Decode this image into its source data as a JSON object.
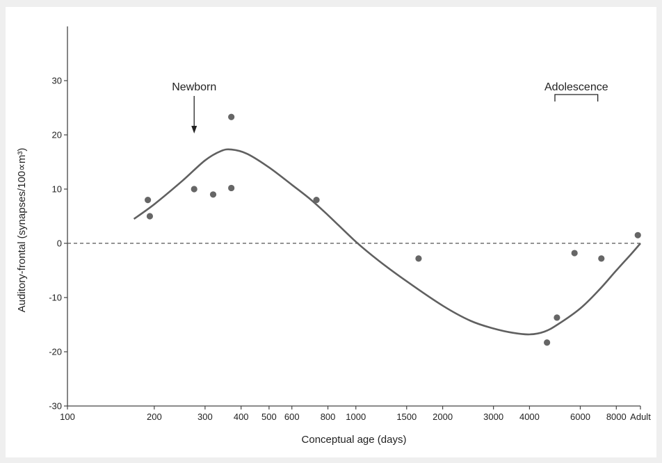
{
  "chart_data": {
    "type": "scatter",
    "title": "",
    "xlabel": "Conceptual age (days)",
    "ylabel": "Auditory-frontal (synapses/100∝m³)",
    "x_scale": "log",
    "xlim": [
      100,
      9700
    ],
    "ylim": [
      -30,
      40
    ],
    "x_ticks": [
      {
        "value": 100,
        "label": "100"
      },
      {
        "value": 200,
        "label": "200"
      },
      {
        "value": 300,
        "label": "300"
      },
      {
        "value": 400,
        "label": "400"
      },
      {
        "value": 500,
        "label": "500"
      },
      {
        "value": 600,
        "label": "600"
      },
      {
        "value": 800,
        "label": "800"
      },
      {
        "value": 1000,
        "label": "1000"
      },
      {
        "value": 1500,
        "label": "1500"
      },
      {
        "value": 2000,
        "label": "2000"
      },
      {
        "value": 3000,
        "label": "3000"
      },
      {
        "value": 4000,
        "label": "4000"
      },
      {
        "value": 6000,
        "label": "6000"
      },
      {
        "value": 8000,
        "label": "8000"
      },
      {
        "value": 9700,
        "label": "Adult"
      }
    ],
    "y_ticks": [
      {
        "value": -30,
        "label": "-30"
      },
      {
        "value": -20,
        "label": "-20"
      },
      {
        "value": -10,
        "label": "-10"
      },
      {
        "value": 0,
        "label": "0"
      },
      {
        "value": 10,
        "label": "10"
      },
      {
        "value": 20,
        "label": "20"
      },
      {
        "value": 30,
        "label": "30"
      }
    ],
    "grid": false,
    "reference_line": {
      "y": 0,
      "style": "dashed"
    },
    "points": [
      {
        "x": 190,
        "y": 8
      },
      {
        "x": 193,
        "y": 5
      },
      {
        "x": 275,
        "y": 10
      },
      {
        "x": 320,
        "y": 9
      },
      {
        "x": 370,
        "y": 23.3
      },
      {
        "x": 370,
        "y": 10.2
      },
      {
        "x": 730,
        "y": 8
      },
      {
        "x": 1650,
        "y": -2.8
      },
      {
        "x": 4600,
        "y": -18.3
      },
      {
        "x": 4980,
        "y": -13.7
      },
      {
        "x": 5730,
        "y": -1.8
      },
      {
        "x": 7100,
        "y": -2.8
      },
      {
        "x": 9500,
        "y": 1.5
      }
    ],
    "fit_curve": [
      {
        "x": 170,
        "y": 4.5
      },
      {
        "x": 200,
        "y": 7.2
      },
      {
        "x": 250,
        "y": 11.5
      },
      {
        "x": 300,
        "y": 15.3
      },
      {
        "x": 340,
        "y": 17
      },
      {
        "x": 370,
        "y": 17.3
      },
      {
        "x": 420,
        "y": 16.5
      },
      {
        "x": 500,
        "y": 14
      },
      {
        "x": 600,
        "y": 10.8
      },
      {
        "x": 700,
        "y": 8
      },
      {
        "x": 800,
        "y": 5.2
      },
      {
        "x": 1000,
        "y": 0.3
      },
      {
        "x": 1200,
        "y": -3.2
      },
      {
        "x": 1500,
        "y": -7
      },
      {
        "x": 2000,
        "y": -11.5
      },
      {
        "x": 2500,
        "y": -14.3
      },
      {
        "x": 3000,
        "y": -15.7
      },
      {
        "x": 3500,
        "y": -16.5
      },
      {
        "x": 4000,
        "y": -16.8
      },
      {
        "x": 4500,
        "y": -16.3
      },
      {
        "x": 5000,
        "y": -15
      },
      {
        "x": 6000,
        "y": -12
      },
      {
        "x": 7000,
        "y": -8.5
      },
      {
        "x": 8000,
        "y": -5
      },
      {
        "x": 9000,
        "y": -2
      },
      {
        "x": 9700,
        "y": 0
      }
    ],
    "annotations": [
      {
        "label": "Newborn",
        "type": "arrow",
        "x": 275
      },
      {
        "label": "Adolescence",
        "type": "bracket",
        "x_start": 4900,
        "x_end": 6900
      }
    ]
  }
}
